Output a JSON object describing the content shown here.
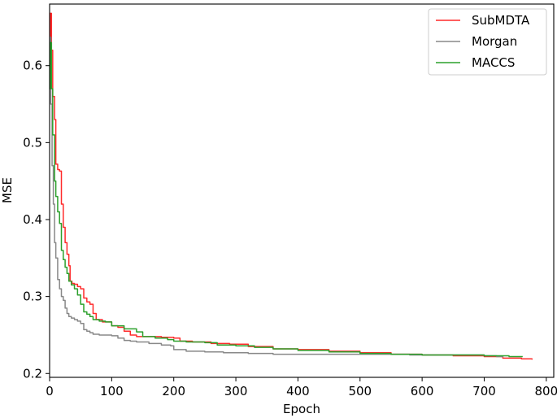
{
  "chart_data": {
    "type": "line",
    "title": "",
    "xlabel": "Epoch",
    "ylabel": "MSE",
    "xlim": [
      0,
      812
    ],
    "ylim": [
      0.195,
      0.68
    ],
    "xticks": [
      0,
      100,
      200,
      300,
      400,
      500,
      600,
      700,
      800
    ],
    "yticks": [
      0.2,
      0.3,
      0.4,
      0.5,
      0.6
    ],
    "grid": false,
    "legend_position": "top-right",
    "series": [
      {
        "name": "SubMDTA",
        "color": "#ff2a2a",
        "step": true,
        "points": [
          [
            0,
            0.62
          ],
          [
            1,
            0.668
          ],
          [
            3,
            0.62
          ],
          [
            5,
            0.56
          ],
          [
            8,
            0.53
          ],
          [
            10,
            0.472
          ],
          [
            13,
            0.465
          ],
          [
            16,
            0.463
          ],
          [
            19,
            0.42
          ],
          [
            22,
            0.39
          ],
          [
            25,
            0.37
          ],
          [
            28,
            0.355
          ],
          [
            31,
            0.34
          ],
          [
            33,
            0.32
          ],
          [
            36,
            0.317
          ],
          [
            40,
            0.316
          ],
          [
            45,
            0.313
          ],
          [
            50,
            0.31
          ],
          [
            55,
            0.298
          ],
          [
            60,
            0.293
          ],
          [
            65,
            0.29
          ],
          [
            70,
            0.278
          ],
          [
            75,
            0.27
          ],
          [
            85,
            0.267
          ],
          [
            95,
            0.267
          ],
          [
            100,
            0.262
          ],
          [
            110,
            0.26
          ],
          [
            120,
            0.255
          ],
          [
            130,
            0.25
          ],
          [
            140,
            0.248
          ],
          [
            160,
            0.248
          ],
          [
            180,
            0.247
          ],
          [
            200,
            0.246
          ],
          [
            210,
            0.242
          ],
          [
            230,
            0.241
          ],
          [
            260,
            0.239
          ],
          [
            290,
            0.238
          ],
          [
            320,
            0.235
          ],
          [
            360,
            0.232
          ],
          [
            400,
            0.231
          ],
          [
            450,
            0.229
          ],
          [
            500,
            0.227
          ],
          [
            550,
            0.225
          ],
          [
            600,
            0.224
          ],
          [
            650,
            0.223
          ],
          [
            700,
            0.222
          ],
          [
            730,
            0.22
          ],
          [
            760,
            0.219
          ],
          [
            777,
            0.218
          ]
        ]
      },
      {
        "name": "Morgan",
        "color": "#888888",
        "step": true,
        "points": [
          [
            0,
            0.58
          ],
          [
            1,
            0.637
          ],
          [
            2,
            0.55
          ],
          [
            4,
            0.47
          ],
          [
            6,
            0.42
          ],
          [
            8,
            0.37
          ],
          [
            10,
            0.35
          ],
          [
            13,
            0.322
          ],
          [
            16,
            0.31
          ],
          [
            19,
            0.3
          ],
          [
            22,
            0.295
          ],
          [
            25,
            0.285
          ],
          [
            28,
            0.278
          ],
          [
            31,
            0.274
          ],
          [
            35,
            0.272
          ],
          [
            40,
            0.27
          ],
          [
            45,
            0.268
          ],
          [
            50,
            0.265
          ],
          [
            55,
            0.257
          ],
          [
            60,
            0.255
          ],
          [
            65,
            0.253
          ],
          [
            70,
            0.251
          ],
          [
            80,
            0.25
          ],
          [
            100,
            0.249
          ],
          [
            110,
            0.246
          ],
          [
            120,
            0.243
          ],
          [
            130,
            0.242
          ],
          [
            140,
            0.241
          ],
          [
            160,
            0.239
          ],
          [
            180,
            0.237
          ],
          [
            195,
            0.236
          ],
          [
            200,
            0.231
          ],
          [
            220,
            0.229
          ],
          [
            250,
            0.228
          ],
          [
            280,
            0.227
          ],
          [
            320,
            0.226
          ],
          [
            360,
            0.225
          ],
          [
            420,
            0.225
          ],
          [
            500,
            0.225
          ],
          [
            580,
            0.224
          ],
          [
            650,
            0.224
          ],
          [
            700,
            0.223
          ],
          [
            720,
            0.222
          ],
          [
            730,
            0.221
          ]
        ]
      },
      {
        "name": "MACCS",
        "color": "#2ca02c",
        "step": true,
        "points": [
          [
            0,
            0.57
          ],
          [
            1,
            0.63
          ],
          [
            3,
            0.57
          ],
          [
            5,
            0.51
          ],
          [
            8,
            0.45
          ],
          [
            10,
            0.43
          ],
          [
            13,
            0.41
          ],
          [
            16,
            0.395
          ],
          [
            19,
            0.36
          ],
          [
            22,
            0.348
          ],
          [
            25,
            0.338
          ],
          [
            28,
            0.33
          ],
          [
            31,
            0.32
          ],
          [
            35,
            0.315
          ],
          [
            40,
            0.31
          ],
          [
            45,
            0.302
          ],
          [
            50,
            0.29
          ],
          [
            55,
            0.28
          ],
          [
            60,
            0.277
          ],
          [
            65,
            0.274
          ],
          [
            70,
            0.27
          ],
          [
            80,
            0.268
          ],
          [
            90,
            0.267
          ],
          [
            100,
            0.262
          ],
          [
            120,
            0.258
          ],
          [
            140,
            0.254
          ],
          [
            150,
            0.248
          ],
          [
            170,
            0.246
          ],
          [
            190,
            0.244
          ],
          [
            200,
            0.242
          ],
          [
            220,
            0.241
          ],
          [
            250,
            0.24
          ],
          [
            270,
            0.237
          ],
          [
            300,
            0.236
          ],
          [
            330,
            0.234
          ],
          [
            360,
            0.232
          ],
          [
            400,
            0.23
          ],
          [
            450,
            0.228
          ],
          [
            500,
            0.226
          ],
          [
            550,
            0.225
          ],
          [
            600,
            0.224
          ],
          [
            650,
            0.224
          ],
          [
            700,
            0.223
          ],
          [
            740,
            0.222
          ],
          [
            762,
            0.222
          ]
        ]
      }
    ]
  }
}
